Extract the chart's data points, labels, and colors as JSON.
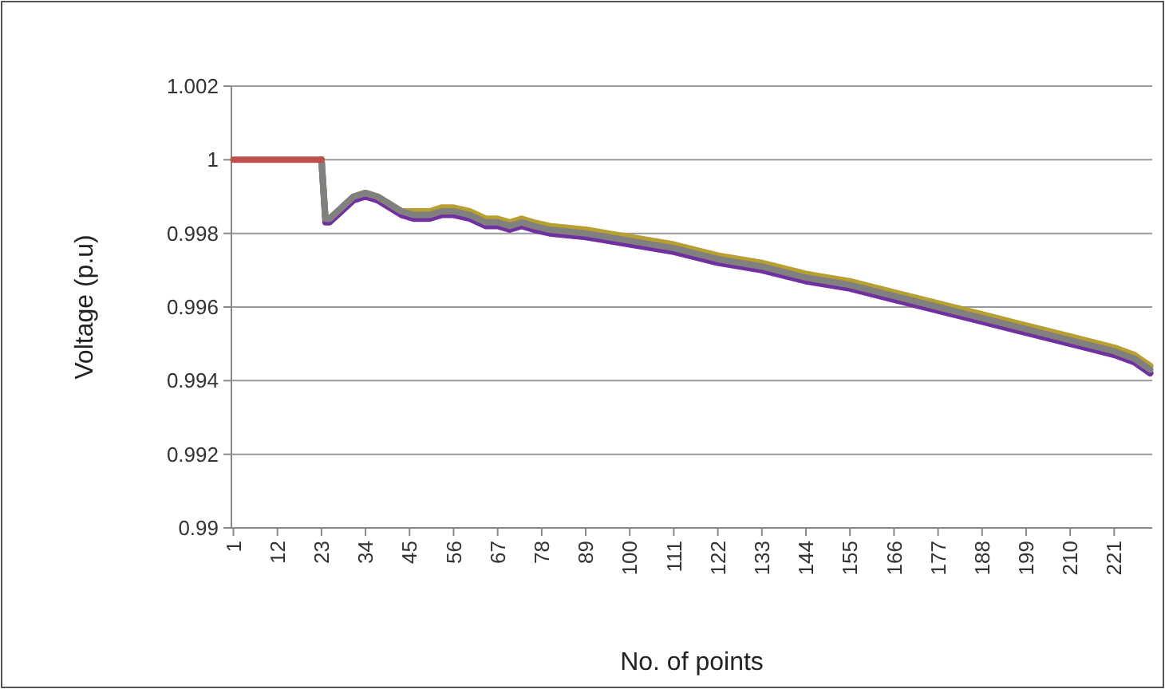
{
  "chart_data": {
    "type": "line",
    "xlabel": "No. of points",
    "ylabel": "Voltage (p.u)",
    "xlim": [
      0.5,
      230.5
    ],
    "xticks": [
      1,
      12,
      23,
      34,
      45,
      56,
      67,
      78,
      89,
      100,
      111,
      122,
      133,
      144,
      155,
      166,
      177,
      188,
      199,
      210,
      221
    ],
    "ylim": [
      0.99,
      1.002
    ],
    "yticks": [
      {
        "value": 0.99,
        "label": "0.99"
      },
      {
        "value": 0.992,
        "label": "0.992"
      },
      {
        "value": 0.994,
        "label": "0.994"
      },
      {
        "value": 0.996,
        "label": "0.996"
      },
      {
        "value": 0.998,
        "label": "0.998"
      },
      {
        "value": 1,
        "label": "1"
      },
      {
        "value": 1.002,
        "label": "1.002"
      }
    ],
    "grid": "y",
    "marker": "none",
    "line_style": "solid",
    "x": [
      23,
      24,
      25,
      28,
      31,
      34,
      37,
      40,
      43,
      46,
      50,
      53,
      56,
      60,
      64,
      67,
      70,
      73,
      76,
      80,
      89,
      100,
      111,
      122,
      133,
      144,
      155,
      166,
      177,
      188,
      199,
      210,
      221,
      226,
      230
    ],
    "series": [
      {
        "color": "#7030a0",
        "values": [
          1,
          0.9983,
          0.9983,
          0.9986,
          0.9989,
          0.999,
          0.9989,
          0.9987,
          0.9985,
          0.9984,
          0.9984,
          0.9985,
          0.9985,
          0.9984,
          0.9982,
          0.9982,
          0.9981,
          0.9982,
          0.9981,
          0.998,
          0.9979,
          0.9977,
          0.9975,
          0.9972,
          0.997,
          0.9967,
          0.9965,
          0.9962,
          0.9959,
          0.9956,
          0.9953,
          0.995,
          0.9947,
          0.9945,
          0.9942
        ]
      },
      {
        "color": "#b8a030",
        "values": [
          1,
          0.9984,
          0.9984,
          0.9987,
          0.999,
          0.9991,
          0.999,
          0.9988,
          0.9986,
          0.9986,
          0.9986,
          0.9987,
          0.9987,
          0.9986,
          0.9984,
          0.9984,
          0.9983,
          0.9984,
          0.9983,
          0.9982,
          0.9981,
          0.9979,
          0.9977,
          0.9974,
          0.9972,
          0.9969,
          0.9967,
          0.9964,
          0.9961,
          0.9958,
          0.9955,
          0.9952,
          0.9949,
          0.9947,
          0.9944
        ]
      },
      {
        "color": "#808080",
        "values": [
          1,
          0.9984,
          0.9984,
          0.9987,
          0.999,
          0.9991,
          0.999,
          0.9988,
          0.9986,
          0.9985,
          0.9985,
          0.9986,
          0.9986,
          0.9985,
          0.9983,
          0.9983,
          0.9982,
          0.9983,
          0.9982,
          0.9981,
          0.998,
          0.9978,
          0.9976,
          0.9973,
          0.9971,
          0.9968,
          0.9966,
          0.9963,
          0.996,
          0.9957,
          0.9954,
          0.9951,
          0.9948,
          0.9946,
          0.9943
        ]
      },
      {
        "color": "#c0504d",
        "x": [
          1,
          23
        ],
        "values": [
          1,
          1
        ]
      }
    ]
  }
}
